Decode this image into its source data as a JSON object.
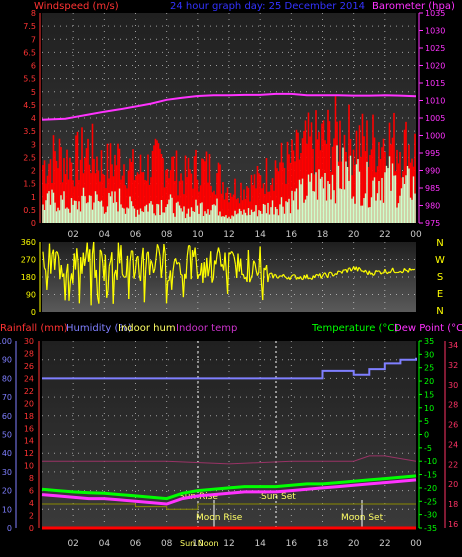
{
  "header": {
    "left": "Windspeed (m/s)",
    "center": "24 hour graph day:  25 December 2014",
    "right": "Barometer (hpa)"
  },
  "colors": {
    "windspeed_title": "#ff3333",
    "barometer": "#ff33ff",
    "center_title": "#3333ff",
    "gust": "#ff0000",
    "avg_wind": "#ccffcc",
    "direction": "#ffff00",
    "rain_label": "#ff3333",
    "humidity": "#7f7fff",
    "indoor_hum": "#ffff66",
    "indoor_temp": "#cc33cc",
    "temperature": "#00ff00",
    "dew_point": "#ff33ff",
    "right_axis2": "#ff3366",
    "yellow_axis": "#ffff00"
  },
  "x_ticks": [
    "02",
    "04",
    "06",
    "08",
    "10",
    "12",
    "14",
    "16",
    "18",
    "20",
    "22",
    "00"
  ],
  "wind_directions": [
    "N",
    "W",
    "S",
    "E",
    "N"
  ],
  "events": {
    "sun_rise": "Sun Rise",
    "sun_set": "Sun Set",
    "moon_rise": "Moon Rise",
    "moon_set": "Moon Set",
    "sun_noon": "Sun Noon"
  },
  "bottom_header": {
    "rainfall": "Rainfall (mm)",
    "humidity": "Humidity (%)",
    "indoor_hum": "Indoor hum",
    "indoor_temp": "Indoor temp",
    "temperature": "Temperature (°C)",
    "dew_point": "Dew Point (°C)"
  },
  "chart_data": [
    {
      "type": "area",
      "name": "wind and barometer",
      "x_range": [
        0,
        24
      ],
      "x_ticks": [
        "02",
        "04",
        "06",
        "08",
        "10",
        "12",
        "14",
        "16",
        "18",
        "20",
        "22",
        "00"
      ],
      "left_axis": {
        "label": "Windspeed (m/s)",
        "range": [
          0,
          8
        ],
        "ticks": [
          "0",
          "0.5",
          "1",
          "1.5",
          "2",
          "2.5",
          "3",
          "3.5",
          "4",
          "4.5",
          "5",
          "5.5",
          "6",
          "6.5",
          "7",
          "7.5",
          "8"
        ]
      },
      "right_axis": {
        "label": "Barometer (hpa)",
        "range": [
          975,
          1035
        ],
        "ticks": [
          "975",
          "980",
          "985",
          "990",
          "995",
          "1000",
          "1005",
          "1010",
          "1015",
          "1020",
          "1025",
          "1030",
          "1035"
        ]
      },
      "series": [
        {
          "name": "gust",
          "x": [
            0,
            1,
            2,
            3,
            4,
            5,
            6,
            7,
            8,
            9,
            10,
            11,
            12,
            13,
            14,
            15,
            16,
            17,
            18,
            19,
            20,
            21,
            22,
            23,
            24
          ],
          "values": [
            2.2,
            2.6,
            2.3,
            2.8,
            2.1,
            2.5,
            1.9,
            2.2,
            2.4,
            1.7,
            2.1,
            2.0,
            1.3,
            1.4,
            1.6,
            2.2,
            2.3,
            2.9,
            3.1,
            3.4,
            3.1,
            3.0,
            3.2,
            3.0,
            2.8
          ]
        },
        {
          "name": "average",
          "x": [
            0,
            1,
            2,
            3,
            4,
            5,
            6,
            7,
            8,
            9,
            10,
            11,
            12,
            13,
            14,
            15,
            16,
            17,
            18,
            19,
            20,
            21,
            22,
            23,
            24
          ],
          "values": [
            0.7,
            0.9,
            0.6,
            1.0,
            0.7,
            0.9,
            0.5,
            0.7,
            0.8,
            0.4,
            0.6,
            0.7,
            0.3,
            0.4,
            0.5,
            0.7,
            0.9,
            1.2,
            1.6,
            1.9,
            1.8,
            1.4,
            1.8,
            1.3,
            1.5
          ]
        },
        {
          "name": "barometer",
          "x": [
            0,
            1.5,
            2,
            3,
            4,
            5,
            6,
            7,
            8,
            9,
            10,
            11,
            12,
            13,
            14,
            15,
            16,
            17,
            18,
            19,
            20,
            21,
            22,
            23,
            24
          ],
          "values": [
            1004.5,
            1004.8,
            1005.2,
            1006,
            1006.8,
            1007.5,
            1008.3,
            1009.1,
            1010.2,
            1010.8,
            1011.3,
            1011.5,
            1011.5,
            1011.6,
            1011.6,
            1011.9,
            1011.9,
            1011.5,
            1011.5,
            1011.5,
            1011.4,
            1011.4,
            1011.5,
            1011.4,
            1011.2
          ]
        }
      ]
    },
    {
      "type": "scatter",
      "name": "wind direction",
      "x_range": [
        0,
        24
      ],
      "y_axis": {
        "range": [
          0,
          360
        ],
        "ticks": [
          "0",
          "90",
          "180",
          "270",
          "360"
        ]
      },
      "series": [
        {
          "name": "direction",
          "x": [
            0,
            1,
            2,
            3,
            4,
            5,
            6,
            7,
            8,
            9,
            10,
            11,
            12,
            13,
            14,
            15,
            16,
            17,
            18,
            19,
            20,
            21,
            22,
            23,
            24
          ],
          "values": [
            250,
            260,
            230,
            280,
            240,
            270,
            250,
            265,
            260,
            240,
            250,
            245,
            255,
            230,
            190,
            185,
            180,
            180,
            185,
            200,
            225,
            200,
            210,
            215,
            210
          ]
        }
      ]
    },
    {
      "type": "line",
      "name": "temperature humidity",
      "x_range": [
        0,
        24
      ],
      "left_axis": {
        "label": "Humidity (%)",
        "range": [
          0,
          100
        ],
        "ticks": [
          "0",
          "10",
          "20",
          "30",
          "40",
          "50",
          "60",
          "70",
          "80",
          "90",
          "100"
        ]
      },
      "left_axis2": {
        "label": "Rainfall (mm)",
        "range": [
          0,
          30
        ],
        "ticks": [
          "0",
          "2",
          "4",
          "6",
          "8",
          "10",
          "12",
          "14",
          "16",
          "18",
          "20",
          "22",
          "24",
          "26",
          "28",
          "30"
        ]
      },
      "right_axis": {
        "label": "Temperature (°C)",
        "range": [
          -35,
          35
        ],
        "ticks": [
          "-35",
          "-30",
          "-25",
          "-20",
          "-15",
          "-10",
          "-5",
          "0",
          "5",
          "10",
          "15",
          "20",
          "25",
          "30",
          "35"
        ]
      },
      "right_axis2": {
        "label": "Dew Point (°C)",
        "range": [
          16,
          34
        ],
        "ticks": [
          "16",
          "18",
          "20",
          "22",
          "24",
          "26",
          "28",
          "30",
          "32",
          "34"
        ]
      },
      "series": [
        {
          "name": "humidity",
          "x": [
            0,
            2,
            4,
            6,
            8,
            10,
            12,
            13,
            14,
            15,
            16,
            17,
            18,
            19,
            20,
            21,
            22,
            23,
            24
          ],
          "values": [
            80,
            80,
            80,
            80,
            80,
            80,
            80,
            80,
            80,
            80,
            80,
            80,
            84,
            84,
            82,
            85,
            88,
            90,
            91
          ]
        },
        {
          "name": "temperature",
          "x": [
            0,
            1,
            2,
            3,
            4,
            5,
            6,
            7,
            8,
            9,
            10,
            11,
            12,
            13,
            14,
            15,
            16,
            17,
            18,
            19,
            20,
            21,
            22,
            23,
            24
          ],
          "values": [
            -20.5,
            -21,
            -21.5,
            -21.8,
            -22,
            -22.5,
            -23,
            -23.5,
            -24,
            -22,
            -21,
            -20.5,
            -20,
            -19.5,
            -19.5,
            -19.5,
            -19,
            -18.5,
            -18.5,
            -18,
            -17.5,
            -17,
            -16.5,
            -16,
            -15.5
          ]
        },
        {
          "name": "dew point",
          "x": [
            0,
            1,
            2,
            3,
            4,
            5,
            6,
            7,
            8,
            9,
            10,
            11,
            12,
            13,
            14,
            15,
            16,
            17,
            18,
            19,
            20,
            21,
            22,
            23,
            24
          ],
          "values": [
            -22.5,
            -23,
            -23.5,
            -24,
            -24,
            -24.5,
            -25,
            -25.5,
            -26,
            -24,
            -23,
            -22.5,
            -22,
            -21.5,
            -21.5,
            -21.5,
            -21,
            -20.5,
            -20,
            -19.5,
            -19,
            -18.5,
            -18,
            -17.5,
            -17
          ]
        },
        {
          "name": "indoor temp",
          "x": [
            0,
            4,
            8,
            12,
            16,
            18,
            20,
            21,
            22,
            24
          ],
          "values": [
            -10,
            -10,
            -10,
            -11,
            -10,
            -10,
            -10,
            -8,
            -8,
            -10
          ]
        },
        {
          "name": "indoor hum",
          "x": [
            0,
            2,
            4,
            6,
            8,
            10,
            12,
            14,
            16,
            18,
            20,
            22,
            24
          ],
          "values": [
            -26,
            -26,
            -26,
            -27,
            -28,
            -26,
            -26,
            -26,
            -26,
            -26,
            -26,
            -26,
            -26
          ]
        },
        {
          "name": "rainfall",
          "x": [
            0,
            24
          ],
          "values": [
            0,
            0
          ]
        }
      ]
    }
  ]
}
